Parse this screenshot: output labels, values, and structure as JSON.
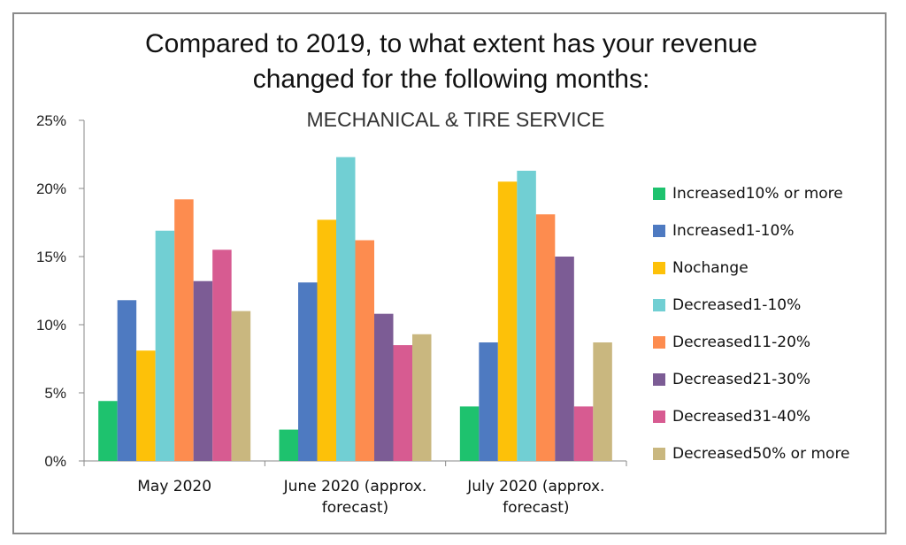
{
  "chart_data": {
    "type": "bar",
    "title_line1": "Compared to 2019, to what extent has your revenue",
    "title_line2": "changed for the following months:",
    "subtitle": "MECHANICAL & TIRE SERVICE",
    "categories": [
      "May 2020",
      "June 2020 (approx. forecast)",
      "July 2020 (approx. forecast)"
    ],
    "category_lines": [
      [
        "May 2020"
      ],
      [
        "June 2020 (approx.",
        "forecast)"
      ],
      [
        "July 2020 (approx.",
        "forecast)"
      ]
    ],
    "ylim": [
      0,
      25
    ],
    "yticks": [
      "0%",
      "5%",
      "10%",
      "15%",
      "20%",
      "25%"
    ],
    "legend_position": "right",
    "series": [
      {
        "name": "Increased10% or more",
        "color": "#1ec26e",
        "values": [
          4.4,
          2.3,
          4.0
        ]
      },
      {
        "name": "Increased1-10%",
        "color": "#4e7ac1",
        "values": [
          11.8,
          13.1,
          8.7
        ]
      },
      {
        "name": "Nochange",
        "color": "#fdc109",
        "values": [
          8.1,
          17.7,
          20.5
        ]
      },
      {
        "name": "Decreased1-10%",
        "color": "#71cfd3",
        "values": [
          16.9,
          22.3,
          21.3
        ]
      },
      {
        "name": "Decreased11-20%",
        "color": "#fd8c4f",
        "values": [
          19.2,
          16.2,
          18.1
        ]
      },
      {
        "name": "Decreased21-30%",
        "color": "#7c5c95",
        "values": [
          13.2,
          10.8,
          15.0
        ]
      },
      {
        "name": "Decreased31-40%",
        "color": "#d75b91",
        "values": [
          15.5,
          8.5,
          4.0
        ]
      },
      {
        "name": "Decreased50% or more",
        "color": "#c9b77f",
        "values": [
          11.0,
          9.3,
          8.7
        ]
      }
    ]
  }
}
